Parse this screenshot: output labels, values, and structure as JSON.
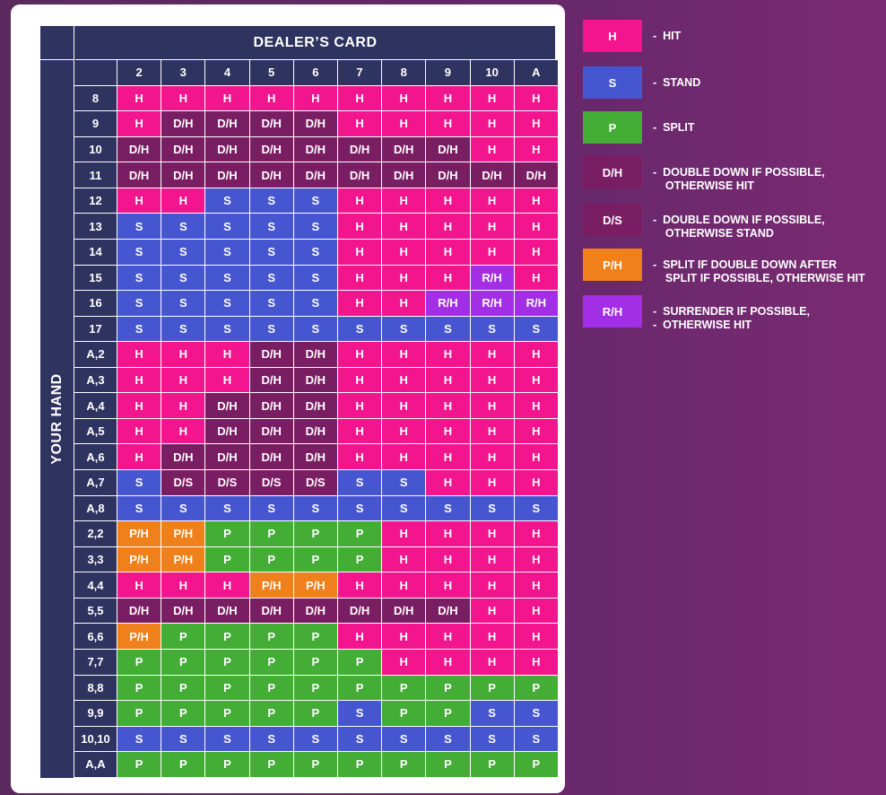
{
  "chart": {
    "dealer_title": "DEALER’S CARD",
    "your_hand_title": "YOUR HAND",
    "dealer_cards": [
      "2",
      "3",
      "4",
      "5",
      "6",
      "7",
      "8",
      "9",
      "10",
      "A"
    ],
    "rows": [
      {
        "hand": "8",
        "actions": [
          "H",
          "H",
          "H",
          "H",
          "H",
          "H",
          "H",
          "H",
          "H",
          "H"
        ]
      },
      {
        "hand": "9",
        "actions": [
          "H",
          "D/H",
          "D/H",
          "D/H",
          "D/H",
          "H",
          "H",
          "H",
          "H",
          "H"
        ]
      },
      {
        "hand": "10",
        "actions": [
          "D/H",
          "D/H",
          "D/H",
          "D/H",
          "D/H",
          "D/H",
          "D/H",
          "D/H",
          "H",
          "H"
        ]
      },
      {
        "hand": "11",
        "actions": [
          "D/H",
          "D/H",
          "D/H",
          "D/H",
          "D/H",
          "D/H",
          "D/H",
          "D/H",
          "D/H",
          "D/H"
        ]
      },
      {
        "hand": "12",
        "actions": [
          "H",
          "H",
          "S",
          "S",
          "S",
          "H",
          "H",
          "H",
          "H",
          "H"
        ]
      },
      {
        "hand": "13",
        "actions": [
          "S",
          "S",
          "S",
          "S",
          "S",
          "H",
          "H",
          "H",
          "H",
          "H"
        ]
      },
      {
        "hand": "14",
        "actions": [
          "S",
          "S",
          "S",
          "S",
          "S",
          "H",
          "H",
          "H",
          "H",
          "H"
        ]
      },
      {
        "hand": "15",
        "actions": [
          "S",
          "S",
          "S",
          "S",
          "S",
          "H",
          "H",
          "H",
          "R/H",
          "H"
        ]
      },
      {
        "hand": "16",
        "actions": [
          "S",
          "S",
          "S",
          "S",
          "S",
          "H",
          "H",
          "R/H",
          "R/H",
          "R/H"
        ]
      },
      {
        "hand": "17",
        "actions": [
          "S",
          "S",
          "S",
          "S",
          "S",
          "S",
          "S",
          "S",
          "S",
          "S"
        ]
      },
      {
        "hand": "A,2",
        "actions": [
          "H",
          "H",
          "H",
          "D/H",
          "D/H",
          "H",
          "H",
          "H",
          "H",
          "H"
        ]
      },
      {
        "hand": "A,3",
        "actions": [
          "H",
          "H",
          "H",
          "D/H",
          "D/H",
          "H",
          "H",
          "H",
          "H",
          "H"
        ]
      },
      {
        "hand": "A,4",
        "actions": [
          "H",
          "H",
          "D/H",
          "D/H",
          "D/H",
          "H",
          "H",
          "H",
          "H",
          "H"
        ]
      },
      {
        "hand": "A,5",
        "actions": [
          "H",
          "H",
          "D/H",
          "D/H",
          "D/H",
          "H",
          "H",
          "H",
          "H",
          "H"
        ]
      },
      {
        "hand": "A,6",
        "actions": [
          "H",
          "D/H",
          "D/H",
          "D/H",
          "D/H",
          "H",
          "H",
          "H",
          "H",
          "H"
        ]
      },
      {
        "hand": "A,7",
        "actions": [
          "S",
          "D/S",
          "D/S",
          "D/S",
          "D/S",
          "S",
          "S",
          "H",
          "H",
          "H"
        ]
      },
      {
        "hand": "A,8",
        "actions": [
          "S",
          "S",
          "S",
          "S",
          "S",
          "S",
          "S",
          "S",
          "S",
          "S"
        ]
      },
      {
        "hand": "2,2",
        "actions": [
          "P/H",
          "P/H",
          "P",
          "P",
          "P",
          "P",
          "H",
          "H",
          "H",
          "H"
        ]
      },
      {
        "hand": "3,3",
        "actions": [
          "P/H",
          "P/H",
          "P",
          "P",
          "P",
          "P",
          "H",
          "H",
          "H",
          "H"
        ]
      },
      {
        "hand": "4,4",
        "actions": [
          "H",
          "H",
          "H",
          "P/H",
          "P/H",
          "H",
          "H",
          "H",
          "H",
          "H"
        ]
      },
      {
        "hand": "5,5",
        "actions": [
          "D/H",
          "D/H",
          "D/H",
          "D/H",
          "D/H",
          "D/H",
          "D/H",
          "D/H",
          "H",
          "H"
        ]
      },
      {
        "hand": "6,6",
        "actions": [
          "P/H",
          "P",
          "P",
          "P",
          "P",
          "H",
          "H",
          "H",
          "H",
          "H"
        ]
      },
      {
        "hand": "7,7",
        "actions": [
          "P",
          "P",
          "P",
          "P",
          "P",
          "P",
          "H",
          "H",
          "H",
          "H"
        ]
      },
      {
        "hand": "8,8",
        "actions": [
          "P",
          "P",
          "P",
          "P",
          "P",
          "P",
          "P",
          "P",
          "P",
          "P"
        ]
      },
      {
        "hand": "9,9",
        "actions": [
          "P",
          "P",
          "P",
          "P",
          "P",
          "S",
          "P",
          "P",
          "S",
          "S"
        ]
      },
      {
        "hand": "10,10",
        "actions": [
          "S",
          "S",
          "S",
          "S",
          "S",
          "S",
          "S",
          "S",
          "S",
          "S"
        ]
      },
      {
        "hand": "A,A",
        "actions": [
          "P",
          "P",
          "P",
          "P",
          "P",
          "P",
          "P",
          "P",
          "P",
          "P"
        ]
      }
    ]
  },
  "colors": {
    "H": "#f2158d",
    "S": "#4556d0",
    "P": "#43ad36",
    "D/H": "#7a1e63",
    "D/S": "#7a1e63",
    "P/H": "#f0801b",
    "R/H": "#a22ee6"
  },
  "legend": [
    {
      "code": "H",
      "lines": [
        "-  HIT"
      ]
    },
    {
      "code": "S",
      "lines": [
        "-  STAND"
      ]
    },
    {
      "code": "P",
      "lines": [
        "-  SPLIT"
      ]
    },
    {
      "code": "D/H",
      "lines": [
        "-  DOUBLE DOWN IF POSSIBLE,",
        "    OTHERWISE HIT"
      ]
    },
    {
      "code": "D/S",
      "lines": [
        "-  DOUBLE DOWN IF POSSIBLE,",
        "    OTHERWISE STAND"
      ]
    },
    {
      "code": "P/H",
      "lines": [
        "-  SPLIT IF DOUBLE DOWN AFTER",
        "    SPLIT IF POSSIBLE, OTHERWISE HIT"
      ]
    },
    {
      "code": "R/H",
      "lines": [
        "-  SURRENDER IF POSSIBLE,",
        "-  OTHERWISE HIT"
      ]
    }
  ]
}
